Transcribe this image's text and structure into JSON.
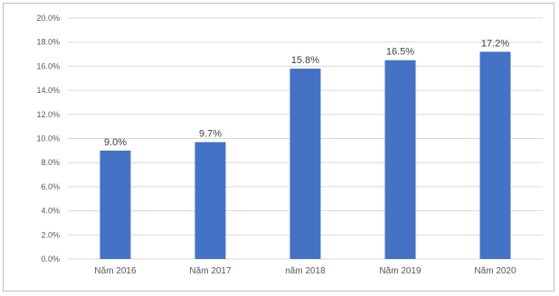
{
  "chart_data": {
    "type": "bar",
    "title": "",
    "xlabel": "",
    "ylabel": "",
    "categories": [
      "Năm 2016",
      "Năm 2017",
      "năm 2018",
      "Năm 2019",
      "Năm 2020"
    ],
    "values": [
      9.0,
      9.7,
      15.8,
      16.5,
      17.2
    ],
    "value_labels": [
      "9.0%",
      "9.7%",
      "15.8%",
      "16.5%",
      "17.2%"
    ],
    "ylim": [
      0,
      20
    ],
    "y_ticks": [
      0,
      2,
      4,
      6,
      8,
      10,
      12,
      14,
      16,
      18,
      20
    ],
    "y_tick_labels": [
      "0.0%",
      "2.0%",
      "4.0%",
      "6.0%",
      "8.0%",
      "10.0%",
      "12.0%",
      "14.0%",
      "16.0%",
      "18.0%",
      "20.0%"
    ],
    "grid": true,
    "legend": "none",
    "bar_color": "#4472c4"
  }
}
